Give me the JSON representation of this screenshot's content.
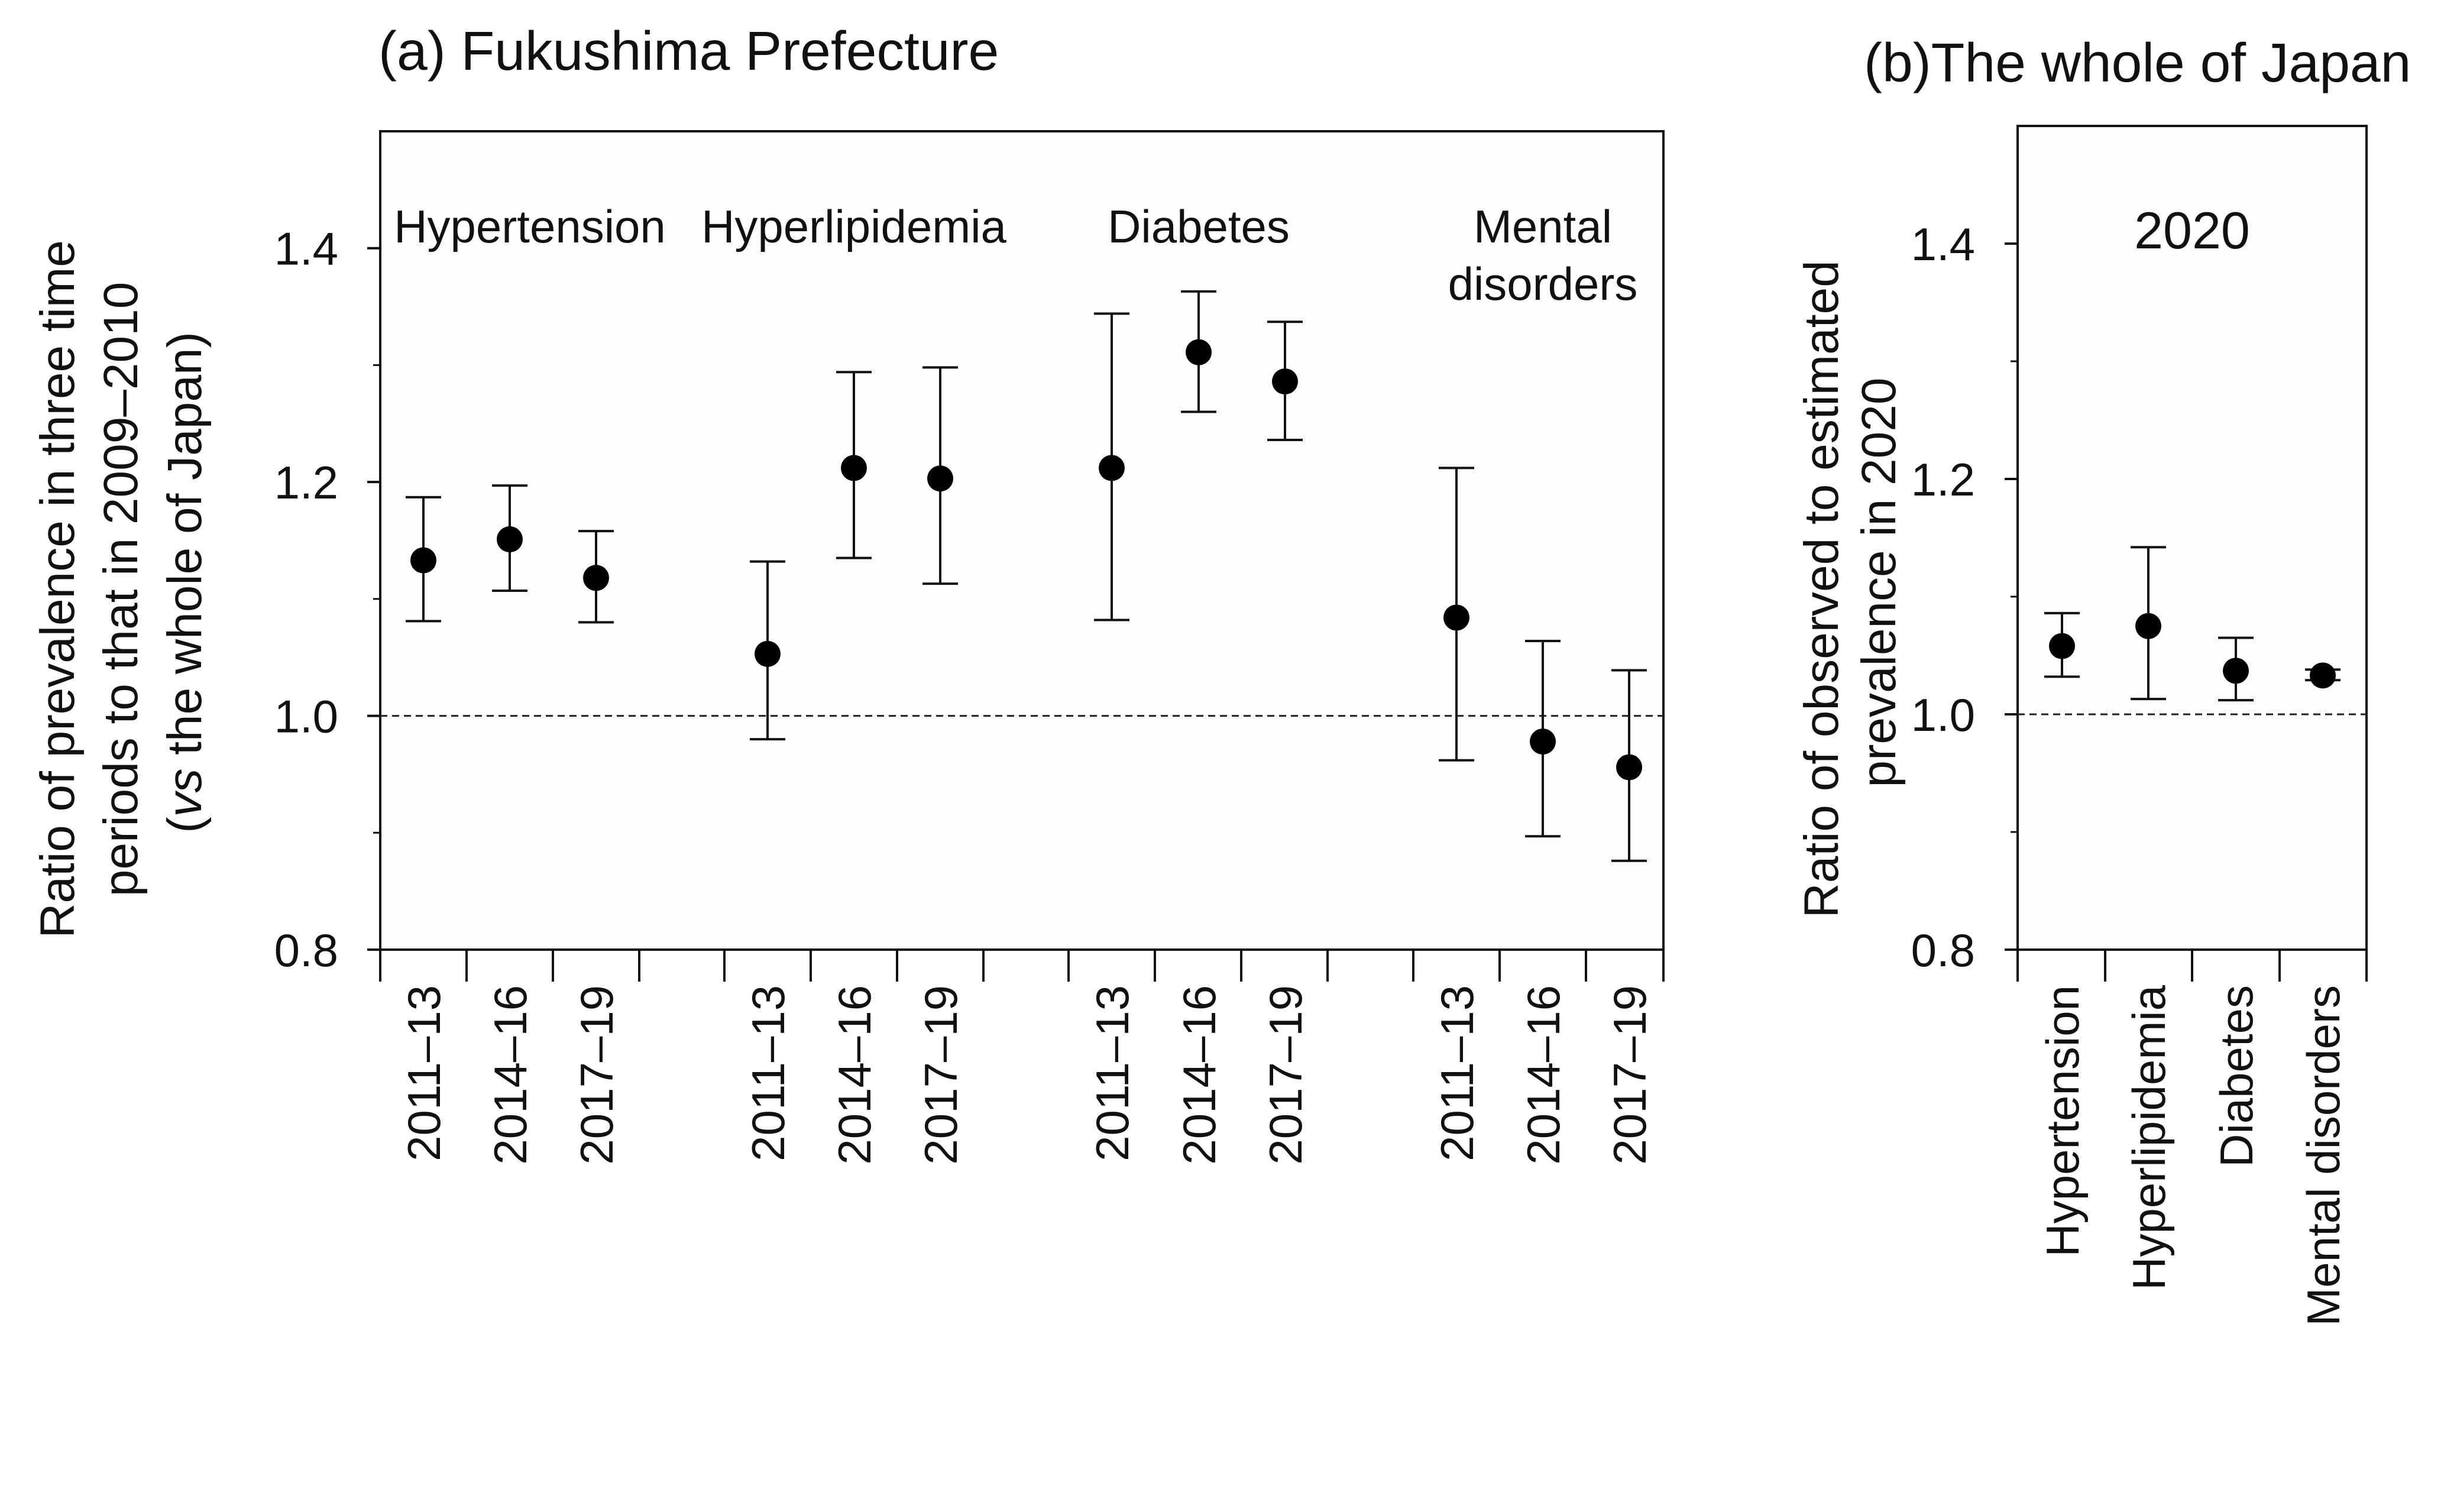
{
  "chart_data": [
    {
      "type": "scatter",
      "title": "(a) Fukushima Prefecture",
      "ylabel_lines": [
        "Ratio of prevalence in three time",
        "periods to that in 2009–2010",
        "(vs the whole of Japan)"
      ],
      "ylabel_italic": "vs",
      "ylabel_rest": " the whole of Japan)",
      "ylim": [
        0.8,
        1.5
      ],
      "yticks": [
        "0.8",
        "1.0",
        "1.2",
        "1.4"
      ],
      "reference_line": 1.0,
      "groups": [
        {
          "name": "Hypertension",
          "label_lines": [
            "Hypertension"
          ],
          "periods": [
            "2011–13",
            "2014–16",
            "2017–19"
          ],
          "points": [
            {
              "value": 1.133,
              "lower": 1.081,
              "upper": 1.187
            },
            {
              "value": 1.151,
              "lower": 1.107,
              "upper": 1.197
            },
            {
              "value": 1.118,
              "lower": 1.08,
              "upper": 1.158
            }
          ]
        },
        {
          "name": "Hyperlipidemia",
          "label_lines": [
            "Hyperlipidemia"
          ],
          "periods": [
            "2011–13",
            "2014–16",
            "2017–19"
          ],
          "points": [
            {
              "value": 1.053,
              "lower": 0.98,
              "upper": 1.132
            },
            {
              "value": 1.212,
              "lower": 1.135,
              "upper": 1.294
            },
            {
              "value": 1.203,
              "lower": 1.113,
              "upper": 1.298
            }
          ]
        },
        {
          "name": "Diabetes",
          "label_lines": [
            "Diabetes"
          ],
          "periods": [
            "2011–13",
            "2014–16",
            "2017–19"
          ],
          "points": [
            {
              "value": 1.212,
              "lower": 1.082,
              "upper": 1.344
            },
            {
              "value": 1.311,
              "lower": 1.26,
              "upper": 1.363
            },
            {
              "value": 1.286,
              "lower": 1.236,
              "upper": 1.337
            }
          ]
        },
        {
          "name": "Mental disorders",
          "label_lines": [
            "Mental",
            "disorders"
          ],
          "periods": [
            "2011–13",
            "2014–16",
            "2017–19"
          ],
          "points": [
            {
              "value": 1.084,
              "lower": 0.962,
              "upper": 1.212
            },
            {
              "value": 0.978,
              "lower": 0.897,
              "upper": 1.064
            },
            {
              "value": 0.956,
              "lower": 0.876,
              "upper": 1.039
            }
          ]
        }
      ]
    },
    {
      "type": "scatter",
      "title": "(b)The whole of Japan",
      "ylabel_lines": [
        "Ratio of observed to estimated",
        "prevalence in 2020"
      ],
      "annotation": "2020",
      "ylim": [
        0.8,
        1.5
      ],
      "yticks": [
        "0.8",
        "1.0",
        "1.2",
        "1.4"
      ],
      "reference_line": 1.0,
      "categories": [
        "Hypertension",
        "Hyperlipidemia",
        "Diabetes",
        "Mental disorders"
      ],
      "points": [
        {
          "value": 1.058,
          "lower": 1.032,
          "upper": 1.086
        },
        {
          "value": 1.075,
          "lower": 1.013,
          "upper": 1.142
        },
        {
          "value": 1.037,
          "lower": 1.012,
          "upper": 1.065
        },
        {
          "value": 1.033,
          "lower": 1.029,
          "upper": 1.038
        }
      ]
    }
  ]
}
